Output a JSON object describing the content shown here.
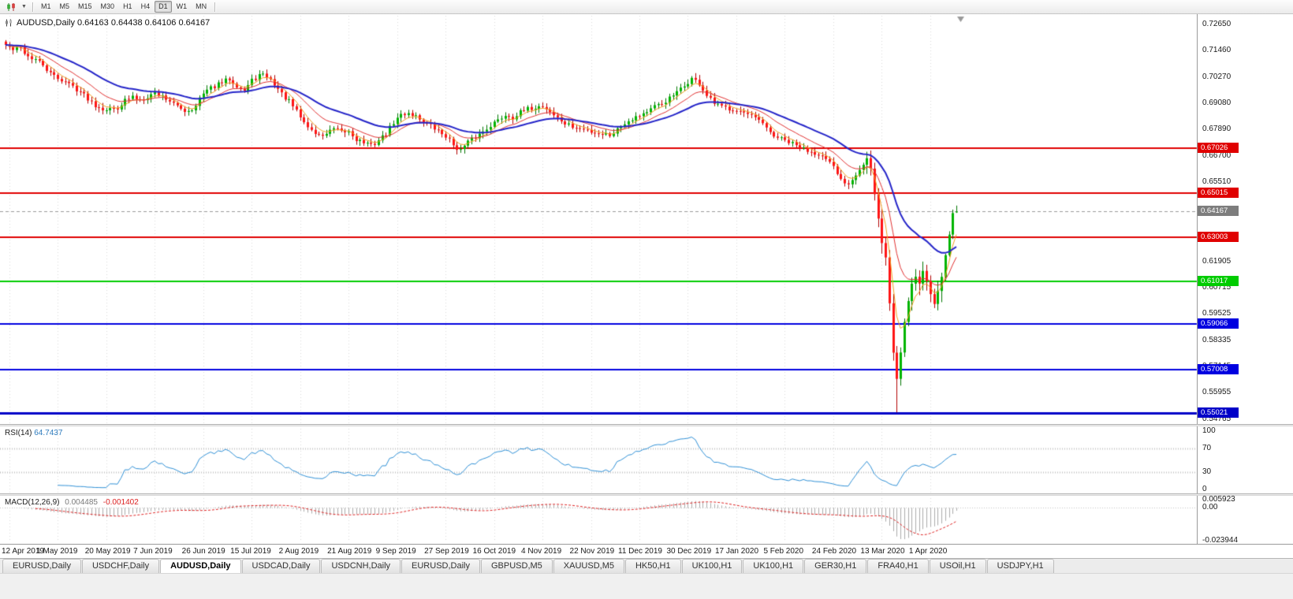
{
  "toolbar": {
    "timeframes": [
      "M1",
      "M5",
      "M15",
      "M30",
      "H1",
      "H4",
      "D1",
      "W1",
      "MN"
    ],
    "active_timeframe": "D1"
  },
  "chart": {
    "title_line": "AUDUSD,Daily 0.64163 0.64438 0.64106 0.64167"
  },
  "chart_data": {
    "type": "candlestick",
    "symbol": "AUDUSD",
    "period": "Daily",
    "ohlc": {
      "open": "0.64163",
      "high": "0.64438",
      "low": "0.64106",
      "close": "0.64167"
    },
    "price_max": 0.729,
    "price_min": 0.5475,
    "candle_count": 256,
    "seed": 42,
    "noise": 0.0011,
    "vol_zone": {
      "from": 231,
      "to": 251,
      "mult": 2.4
    },
    "y_axis_ticks": [
      "0.72650",
      "0.71460",
      "0.70270",
      "0.69080",
      "0.67890",
      "0.66700",
      "0.65510",
      "0.61905",
      "0.60715",
      "0.59525",
      "0.58335",
      "0.57145",
      "0.55955",
      "0.54765"
    ],
    "x_axis_labels": [
      "12 Apr 2019",
      "1 May 2019",
      "20 May 2019",
      "7 Jun 2019",
      "26 Jun 2019",
      "15 Jul 2019",
      "2 Aug 2019",
      "21 Aug 2019",
      "9 Sep 2019",
      "27 Sep 2019",
      "16 Oct 2019",
      "4 Nov 2019",
      "22 Nov 2019",
      "11 Dec 2019",
      "30 Dec 2019",
      "17 Jan 2020",
      "5 Feb 2020",
      "24 Feb 2020",
      "13 Mar 2020",
      "1 Apr 2020"
    ],
    "horizontal_lines": [
      {
        "label": "0.67026",
        "price": 0.67026,
        "color": "#e00000",
        "width": 2
      },
      {
        "label": "0.65015",
        "price": 0.65015,
        "color": "#e00000",
        "width": 2
      },
      {
        "label": "0.63003",
        "price": 0.63003,
        "color": "#e00000",
        "width": 2
      },
      {
        "label": "0.61017",
        "price": 0.61017,
        "color": "#00cc00",
        "width": 2
      },
      {
        "label": "0.59066",
        "price": 0.59066,
        "color": "#0000e0",
        "width": 2
      },
      {
        "label": "0.57008",
        "price": 0.57008,
        "color": "#0000e0",
        "width": 2
      },
      {
        "label": "0.55021",
        "price": 0.55021,
        "color": "#0000c8",
        "width": 3
      }
    ],
    "current_price": {
      "value": "0.64167",
      "box_color": "#7d7d7d",
      "line_color": "#9a9a9a"
    },
    "anchors": [
      [
        0,
        0.7172
      ],
      [
        2,
        0.715
      ],
      [
        4,
        0.7158
      ],
      [
        6,
        0.712
      ],
      [
        8,
        0.7105
      ],
      [
        10,
        0.708
      ],
      [
        12,
        0.704
      ],
      [
        14,
        0.7022
      ],
      [
        16,
        0.7005
      ],
      [
        18,
        0.6985
      ],
      [
        20,
        0.696
      ],
      [
        22,
        0.693
      ],
      [
        24,
        0.69
      ],
      [
        26,
        0.6885
      ],
      [
        28,
        0.688
      ],
      [
        30,
        0.689
      ],
      [
        32,
        0.692
      ],
      [
        34,
        0.6935
      ],
      [
        36,
        0.6925
      ],
      [
        38,
        0.694
      ],
      [
        40,
        0.6955
      ],
      [
        42,
        0.694
      ],
      [
        44,
        0.692
      ],
      [
        46,
        0.689
      ],
      [
        48,
        0.6875
      ],
      [
        50,
        0.688
      ],
      [
        52,
        0.693
      ],
      [
        54,
        0.6965
      ],
      [
        56,
        0.6985
      ],
      [
        58,
        0.7
      ],
      [
        60,
        0.702
      ],
      [
        62,
        0.699
      ],
      [
        64,
        0.6965
      ],
      [
        66,
        0.701
      ],
      [
        68,
        0.7035
      ],
      [
        70,
        0.703
      ],
      [
        72,
        0.6995
      ],
      [
        74,
        0.695
      ],
      [
        76,
        0.6915
      ],
      [
        78,
        0.687
      ],
      [
        80,
        0.682
      ],
      [
        82,
        0.6785
      ],
      [
        84,
        0.676
      ],
      [
        86,
        0.677
      ],
      [
        88,
        0.679
      ],
      [
        90,
        0.6775
      ],
      [
        92,
        0.678
      ],
      [
        94,
        0.6745
      ],
      [
        96,
        0.673
      ],
      [
        98,
        0.6715
      ],
      [
        100,
        0.674
      ],
      [
        102,
        0.677
      ],
      [
        104,
        0.682
      ],
      [
        106,
        0.6855
      ],
      [
        108,
        0.6865
      ],
      [
        110,
        0.685
      ],
      [
        112,
        0.6825
      ],
      [
        114,
        0.6805
      ],
      [
        116,
        0.678
      ],
      [
        118,
        0.676
      ],
      [
        120,
        0.672
      ],
      [
        122,
        0.6695
      ],
      [
        124,
        0.673
      ],
      [
        126,
        0.6755
      ],
      [
        128,
        0.678
      ],
      [
        130,
        0.681
      ],
      [
        132,
        0.683
      ],
      [
        134,
        0.6855
      ],
      [
        136,
        0.6845
      ],
      [
        138,
        0.6865
      ],
      [
        140,
        0.688
      ],
      [
        142,
        0.689
      ],
      [
        144,
        0.6895
      ],
      [
        146,
        0.687
      ],
      [
        148,
        0.684
      ],
      [
        150,
        0.6815
      ],
      [
        152,
        0.68
      ],
      [
        154,
        0.679
      ],
      [
        156,
        0.6785
      ],
      [
        158,
        0.6775
      ],
      [
        160,
        0.677
      ],
      [
        162,
        0.6765
      ],
      [
        164,
        0.679
      ],
      [
        166,
        0.682
      ],
      [
        168,
        0.684
      ],
      [
        170,
        0.6855
      ],
      [
        172,
        0.687
      ],
      [
        174,
        0.689
      ],
      [
        176,
        0.6905
      ],
      [
        178,
        0.693
      ],
      [
        180,
        0.6955
      ],
      [
        182,
        0.6985
      ],
      [
        184,
        0.702
      ],
      [
        186,
        0.6995
      ],
      [
        188,
        0.694
      ],
      [
        190,
        0.6905
      ],
      [
        192,
        0.689
      ],
      [
        194,
        0.6885
      ],
      [
        196,
        0.688
      ],
      [
        198,
        0.6862
      ],
      [
        200,
        0.6845
      ],
      [
        202,
        0.683
      ],
      [
        204,
        0.679
      ],
      [
        206,
        0.676
      ],
      [
        208,
        0.6745
      ],
      [
        210,
        0.673
      ],
      [
        212,
        0.6715
      ],
      [
        214,
        0.67
      ],
      [
        216,
        0.669
      ],
      [
        218,
        0.668
      ],
      [
        220,
        0.665
      ],
      [
        222,
        0.6615
      ],
      [
        224,
        0.656
      ],
      [
        226,
        0.6545
      ],
      [
        228,
        0.659
      ],
      [
        230,
        0.663
      ],
      [
        231,
        0.6655
      ],
      [
        232,
        0.66
      ],
      [
        233,
        0.648
      ],
      [
        234,
        0.637
      ],
      [
        235,
        0.629
      ],
      [
        236,
        0.62
      ],
      [
        237,
        0.6
      ],
      [
        238,
        0.578
      ],
      [
        239,
        0.566
      ],
      [
        240,
        0.578
      ],
      [
        241,
        0.592
      ],
      [
        242,
        0.602
      ],
      [
        243,
        0.61
      ],
      [
        244,
        0.614
      ],
      [
        245,
        0.609
      ],
      [
        246,
        0.616
      ],
      [
        247,
        0.61
      ],
      [
        248,
        0.604
      ],
      [
        249,
        0.599
      ],
      [
        250,
        0.606
      ],
      [
        251,
        0.614
      ],
      [
        252,
        0.623
      ],
      [
        253,
        0.632
      ],
      [
        254,
        0.64
      ],
      [
        255,
        0.64167
      ]
    ],
    "wick_overrides": [
      {
        "index": 239,
        "low": 0.5506
      }
    ],
    "last_candle": {
      "open": 0.64163,
      "high": 0.64438,
      "low": 0.64106,
      "close": 0.64167
    },
    "moving_averages": [
      {
        "period": 5,
        "type": "ema",
        "color": "#f0a020",
        "width": 1
      },
      {
        "period": 13,
        "type": "ema",
        "color": "#e03030",
        "width": 1
      },
      {
        "period": 30,
        "type": "ema",
        "color": "#2424c8",
        "width": 2
      }
    ],
    "colors": {
      "up_fill": "#00b400",
      "up_stroke": "#007600",
      "down_fill": "#ff1414",
      "down_stroke": "#b00000",
      "grid": "#dadada"
    },
    "indicators": {
      "rsi": {
        "name": "RSI(14)",
        "value": "64.7437",
        "line_color": "#2e8fd5",
        "axis_ticks": [
          "100",
          "70",
          "30",
          "0"
        ],
        "level_lines": [
          70,
          30
        ],
        "range": [
          0,
          100
        ]
      },
      "macd": {
        "name": "MACD(12,26,9)",
        "value_main": "0.004485",
        "value_signal": "-0.001402",
        "hist_color": "#ababab",
        "signal_color": "#dd2222",
        "axis_ticks": [
          "0.005923",
          "0.00",
          "-0.023944"
        ],
        "range": [
          -0.023944,
          0.005923
        ]
      }
    }
  },
  "tabs": {
    "items": [
      "EURUSD,Daily",
      "USDCHF,Daily",
      "AUDUSD,Daily",
      "USDCAD,Daily",
      "USDCNH,Daily",
      "EURUSD,Daily",
      "GBPUSD,M5",
      "XAUUSD,M5",
      "HK50,H1",
      "UK100,H1",
      "UK100,H1",
      "GER30,H1",
      "FRA40,H1",
      "USOil,H1",
      "USDJPY,H1"
    ],
    "active_index": 2
  }
}
